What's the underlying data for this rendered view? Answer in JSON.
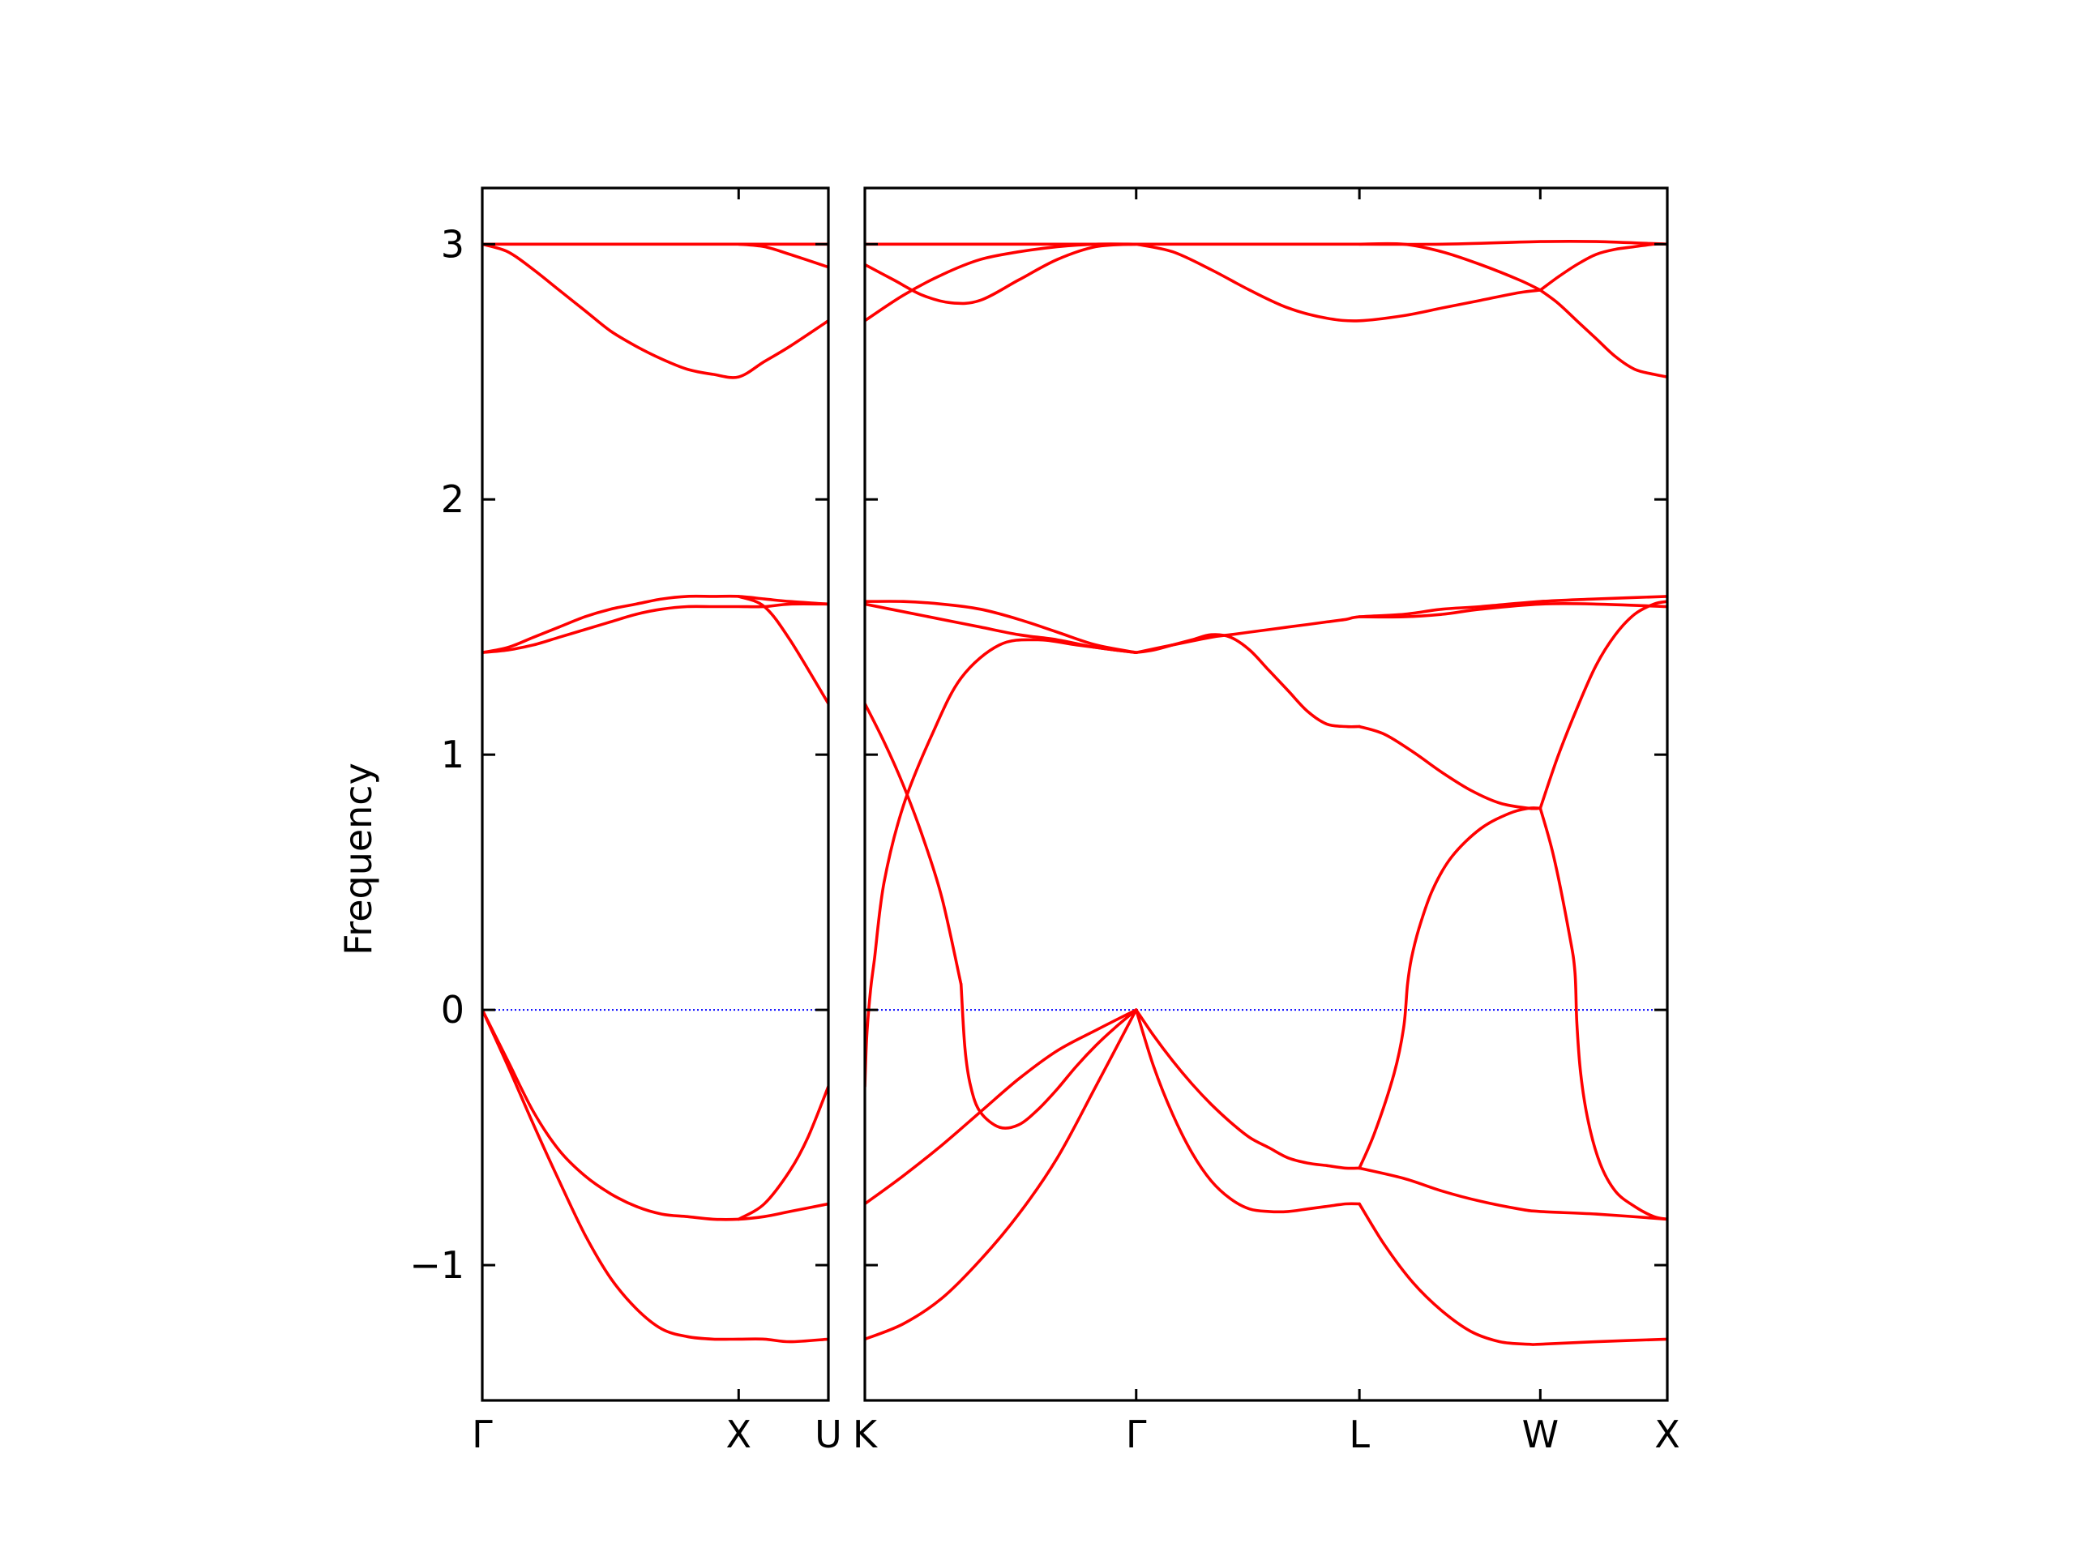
{
  "chart_data": {
    "type": "line",
    "title": "",
    "ylabel": "Frequency",
    "xlabel": "",
    "ylim": [
      -1.53,
      3.22
    ],
    "yticks": [
      -1,
      0,
      1,
      2,
      3
    ],
    "ytick_labels": [
      "−1",
      "0",
      "1",
      "2",
      "3"
    ],
    "grid": false,
    "legend": "none",
    "colors": {
      "bands": "#ff0000",
      "zero_line": "#0000ff",
      "frame": "#000000"
    },
    "panels": [
      {
        "name": "left-panel",
        "xlim": [
          0,
          1.35
        ],
        "ticks": [
          {
            "x": 0,
            "label": "Γ"
          },
          {
            "x": 1,
            "label": "X"
          },
          {
            "x": 1.35,
            "label": "U"
          }
        ],
        "series": [
          {
            "x": [
              0,
              0.1,
              0.2,
              0.3,
              0.4,
              0.5,
              0.6,
              0.7,
              0.8,
              0.9,
              1.0,
              1.1,
              1.2,
              1.35
            ],
            "y": [
              3.0,
              3.0,
              3.0,
              3.0,
              3.0,
              3.0,
              3.0,
              3.0,
              3.0,
              3.0,
              3.0,
              3.0,
              3.0,
              3.0
            ]
          },
          {
            "x": [
              0,
              0.1,
              0.2,
              0.3,
              0.4,
              0.5,
              0.6,
              0.7,
              0.8,
              0.9,
              1.0,
              1.1,
              1.2,
              1.35
            ],
            "y": [
              3.0,
              2.97,
              2.9,
              2.82,
              2.74,
              2.66,
              2.6,
              2.55,
              2.51,
              2.49,
              2.48,
              2.54,
              2.6,
              2.7
            ]
          },
          {
            "x": [
              1.0,
              1.1,
              1.2,
              1.35
            ],
            "y": [
              3.0,
              2.99,
              2.96,
              2.91
            ]
          },
          {
            "x": [
              0,
              0.1,
              0.2,
              0.3,
              0.4,
              0.5,
              0.6,
              0.7,
              0.8,
              0.9,
              1.0,
              1.1,
              1.2,
              1.35
            ],
            "y": [
              1.4,
              1.42,
              1.46,
              1.5,
              1.54,
              1.57,
              1.59,
              1.61,
              1.62,
              1.62,
              1.62,
              1.61,
              1.6,
              1.59
            ]
          },
          {
            "x": [
              0,
              0.1,
              0.2,
              0.3,
              0.4,
              0.5,
              0.6,
              0.7,
              0.8,
              0.9,
              1.0,
              1.1,
              1.2,
              1.35
            ],
            "y": [
              1.4,
              1.41,
              1.43,
              1.46,
              1.49,
              1.52,
              1.55,
              1.57,
              1.58,
              1.58,
              1.58,
              1.58,
              1.59,
              1.59
            ]
          },
          {
            "x": [
              1.0,
              1.1,
              1.2,
              1.35
            ],
            "y": [
              1.62,
              1.58,
              1.45,
              1.2
            ]
          },
          {
            "x": [
              0,
              0.1,
              0.2,
              0.3,
              0.4,
              0.5,
              0.6,
              0.7,
              0.8,
              0.9,
              1.0,
              1.1,
              1.2,
              1.35
            ],
            "y": [
              0,
              -0.2,
              -0.4,
              -0.55,
              -0.65,
              -0.72,
              -0.77,
              -0.8,
              -0.81,
              -0.82,
              -0.82,
              -0.81,
              -0.79,
              -0.76
            ]
          },
          {
            "x": [
              1.0,
              1.1,
              1.2,
              1.27,
              1.35
            ],
            "y": [
              -0.82,
              -0.76,
              -0.63,
              -0.5,
              -0.3
            ]
          },
          {
            "x": [
              0,
              0.1,
              0.2,
              0.3,
              0.4,
              0.5,
              0.6,
              0.7,
              0.8,
              0.9,
              1.0,
              1.1,
              1.2,
              1.35
            ],
            "y": [
              0,
              -0.22,
              -0.45,
              -0.67,
              -0.88,
              -1.05,
              -1.17,
              -1.25,
              -1.28,
              -1.29,
              -1.29,
              -1.29,
              -1.3,
              -1.29
            ]
          }
        ]
      },
      {
        "name": "right-panel",
        "xlim": [
          0,
          4.17
        ],
        "ticks": [
          {
            "x": 0,
            "label": "K"
          },
          {
            "x": 1.41,
            "label": "Γ"
          },
          {
            "x": 2.57,
            "label": "L"
          },
          {
            "x": 3.51,
            "label": "W"
          },
          {
            "x": 4.17,
            "label": "X"
          }
        ],
        "series": [
          {
            "x": [
              0,
              0.5,
              1.0,
              1.41,
              2.0,
              2.57,
              3.0,
              3.51,
              3.8,
              4.17
            ],
            "y": [
              3.0,
              3.0,
              3.0,
              3.0,
              3.0,
              3.0,
              3.0,
              3.01,
              3.01,
              3.0
            ]
          },
          {
            "x": [
              0,
              0.15,
              0.3,
              0.45,
              0.6,
              0.8,
              1.0,
              1.2,
              1.41
            ],
            "y": [
              2.92,
              2.86,
              2.8,
              2.77,
              2.78,
              2.86,
              2.94,
              2.99,
              3.0
            ]
          },
          {
            "x": [
              0,
              0.2,
              0.4,
              0.6,
              0.8,
              1.0,
              1.2,
              1.41
            ],
            "y": [
              2.7,
              2.8,
              2.88,
              2.94,
              2.97,
              2.99,
              3.0,
              3.0
            ]
          },
          {
            "x": [
              1.41,
              1.6,
              1.8,
              2.0,
              2.2,
              2.4,
              2.57,
              2.8,
              3.0,
              3.2,
              3.4,
              3.51
            ],
            "y": [
              3.0,
              2.97,
              2.9,
              2.82,
              2.75,
              2.71,
              2.7,
              2.72,
              2.75,
              2.78,
              2.81,
              2.82
            ]
          },
          {
            "x": [
              2.57,
              2.8,
              3.0,
              3.2,
              3.4,
              3.51
            ],
            "y": [
              3.0,
              3.0,
              2.97,
              2.92,
              2.86,
              2.82
            ]
          },
          {
            "x": [
              3.51,
              3.6,
              3.7,
              3.8,
              3.9,
              4.0,
              4.1,
              4.17
            ],
            "y": [
              2.82,
              2.87,
              2.92,
              2.96,
              2.98,
              2.99,
              3.0,
              3.0
            ]
          },
          {
            "x": [
              3.51,
              3.6,
              3.7,
              3.8,
              3.9,
              4.0,
              4.1,
              4.17
            ],
            "y": [
              2.82,
              2.77,
              2.7,
              2.63,
              2.56,
              2.51,
              2.49,
              2.48
            ]
          },
          {
            "x": [
              0,
              0.2,
              0.4,
              0.6,
              0.8,
              1.0,
              1.2,
              1.41
            ],
            "y": [
              1.6,
              1.6,
              1.59,
              1.57,
              1.53,
              1.48,
              1.43,
              1.4
            ]
          },
          {
            "x": [
              0,
              0.2,
              0.4,
              0.6,
              0.8,
              1.0,
              1.2,
              1.41
            ],
            "y": [
              1.59,
              1.56,
              1.53,
              1.5,
              1.47,
              1.45,
              1.42,
              1.4
            ]
          },
          {
            "x": [
              0,
              0.1,
              0.2,
              0.3,
              0.4,
              0.5
            ],
            "y": [
              1.2,
              1.05,
              0.88,
              0.68,
              0.44,
              0.1
            ]
          },
          {
            "x": [
              0.5,
              0.52,
              0.55,
              0.6,
              0.7,
              0.8,
              0.9,
              1.0,
              1.1,
              1.2,
              1.3,
              1.41
            ],
            "y": [
              0.1,
              -0.15,
              -0.3,
              -0.4,
              -0.46,
              -0.45,
              -0.39,
              -0.31,
              -0.22,
              -0.14,
              -0.07,
              0
            ]
          },
          {
            "x": [
              0,
              0.2,
              0.4,
              0.6,
              0.8,
              1.0,
              1.2,
              1.41
            ],
            "y": [
              -0.76,
              -0.65,
              -0.53,
              -0.4,
              -0.27,
              -0.16,
              -0.08,
              0
            ]
          },
          {
            "x": [
              0,
              0.01,
              0.03,
              0.05,
              0.1,
              0.2,
              0.35,
              0.5,
              0.7,
              0.9,
              1.1,
              1.3,
              1.41
            ],
            "y": [
              -0.3,
              -0.1,
              0.08,
              0.2,
              0.5,
              0.8,
              1.08,
              1.3,
              1.43,
              1.45,
              1.43,
              1.41,
              1.4
            ]
          },
          {
            "x": [
              0,
              0.2,
              0.4,
              0.6,
              0.8,
              1.0,
              1.2,
              1.41
            ],
            "y": [
              -1.29,
              -1.23,
              -1.13,
              -0.98,
              -0.8,
              -0.58,
              -0.3,
              0
            ]
          },
          {
            "x": [
              1.41,
              1.6,
              1.8,
              1.9,
              2.0,
              2.1,
              2.2,
              2.3,
              2.4,
              2.5,
              2.57,
              2.8,
              3.0,
              3.2,
              3.51,
              3.8,
              4.17
            ],
            "y": [
              1.4,
              1.43,
              1.46,
              1.47,
              1.48,
              1.49,
              1.5,
              1.51,
              1.52,
              1.53,
              1.54,
              1.55,
              1.57,
              1.58,
              1.6,
              1.61,
              1.62
            ]
          },
          {
            "x": [
              1.41,
              1.5,
              1.6,
              1.7,
              1.8,
              1.9,
              2.0,
              2.1,
              2.2,
              2.3,
              2.4,
              2.5,
              2.57
            ],
            "y": [
              1.4,
              1.41,
              1.43,
              1.45,
              1.47,
              1.46,
              1.41,
              1.33,
              1.25,
              1.17,
              1.12,
              1.11,
              1.11
            ]
          },
          {
            "x": [
              2.57,
              2.7,
              2.85,
              3.0,
              3.15,
              3.3,
              3.45,
              3.51
            ],
            "y": [
              1.11,
              1.08,
              1.01,
              0.93,
              0.86,
              0.81,
              0.79,
              0.79
            ]
          },
          {
            "x": [
              2.57,
              2.8,
              3.0,
              3.2,
              3.51,
              3.8,
              4.17
            ],
            "y": [
              1.54,
              1.54,
              1.55,
              1.57,
              1.59,
              1.59,
              1.58
            ]
          },
          {
            "x": [
              3.51,
              3.6,
              3.7,
              3.8,
              3.9,
              4.0,
              4.1,
              4.17
            ],
            "y": [
              0.79,
              0.99,
              1.18,
              1.35,
              1.47,
              1.55,
              1.59,
              1.6
            ]
          },
          {
            "x": [
              1.41,
              1.5,
              1.6,
              1.7,
              1.8,
              1.9,
              2.0,
              2.1,
              2.2,
              2.3,
              2.4,
              2.5,
              2.57
            ],
            "y": [
              0,
              -0.1,
              -0.2,
              -0.29,
              -0.37,
              -0.44,
              -0.5,
              -0.54,
              -0.58,
              -0.6,
              -0.61,
              -0.62,
              -0.62
            ]
          },
          {
            "x": [
              2.57,
              2.65,
              2.75,
              2.8,
              2.82,
              2.84,
              2.88,
              2.95,
              3.05,
              3.2,
              3.35,
              3.45,
              3.51
            ],
            "y": [
              -0.62,
              -0.48,
              -0.25,
              -0.07,
              0.1,
              0.2,
              0.32,
              0.47,
              0.6,
              0.71,
              0.77,
              0.79,
              0.79
            ]
          },
          {
            "x": [
              2.57,
              2.8,
              3.0,
              3.2,
              3.4,
              3.51,
              3.8,
              4.17
            ],
            "y": [
              -0.62,
              -0.66,
              -0.71,
              -0.75,
              -0.78,
              -0.79,
              -0.8,
              -0.82
            ]
          },
          {
            "x": [
              3.51,
              3.58,
              3.66,
              3.69,
              3.7,
              3.72,
              3.76,
              3.82,
              3.9,
              4.0,
              4.1,
              4.17
            ],
            "y": [
              0.79,
              0.6,
              0.3,
              0.15,
              -0.05,
              -0.25,
              -0.44,
              -0.6,
              -0.71,
              -0.77,
              -0.81,
              -0.82
            ]
          },
          {
            "x": [
              1.41,
              1.5,
              1.6,
              1.7,
              1.8,
              1.9,
              2.0,
              2.1,
              2.2,
              2.3,
              2.4,
              2.5,
              2.57
            ],
            "y": [
              0,
              -0.22,
              -0.41,
              -0.56,
              -0.67,
              -0.74,
              -0.78,
              -0.79,
              -0.79,
              -0.78,
              -0.77,
              -0.76,
              -0.76
            ]
          },
          {
            "x": [
              2.57,
              2.7,
              2.85,
              3.0,
              3.15,
              3.3,
              3.45,
              3.51,
              3.8,
              4.17
            ],
            "y": [
              -0.76,
              -0.92,
              -1.07,
              -1.18,
              -1.26,
              -1.3,
              -1.31,
              -1.31,
              -1.3,
              -1.29
            ]
          }
        ]
      }
    ]
  }
}
